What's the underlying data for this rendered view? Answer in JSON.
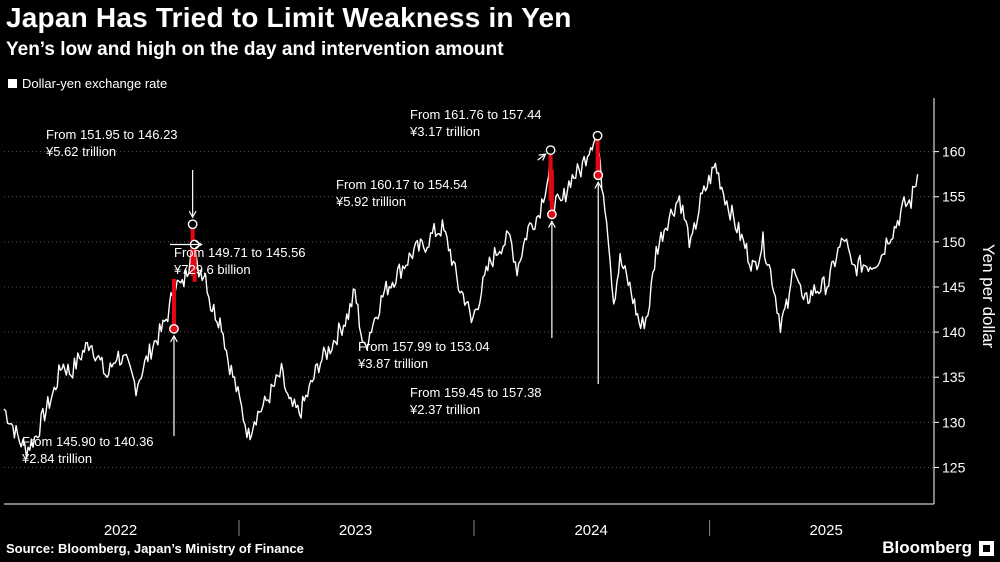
{
  "title": "Japan Has Tried to Limit Weakness in Yen",
  "subtitle": "Yen’s low and high on the day and intervention amount",
  "legend_label": "Dollar-yen exchange rate",
  "source": "Source: Bloomberg, Japan’s Ministry of Finance",
  "brand": "Bloomberg",
  "colors": {
    "background": "#000000",
    "line": "#ffffff",
    "intervention": "#e30613"
  },
  "chart_data": {
    "type": "line",
    "ylabel": "Yen per dollar",
    "ylim": [
      122.5,
      165.5
    ],
    "yticks": [
      125,
      130,
      135,
      140,
      145,
      150,
      155,
      160
    ],
    "xlim": [
      "2022-01-01",
      "2025-11-30"
    ],
    "xticks": [
      {
        "label": "2022",
        "date": "2022-07-01"
      },
      {
        "label": "2023",
        "date": "2023-07-01"
      },
      {
        "label": "2024",
        "date": "2024-07-01"
      },
      {
        "label": "2025",
        "date": "2025-07-01"
      }
    ],
    "year_boundaries": [
      "2023-01-01",
      "2024-01-01",
      "2025-01-01"
    ],
    "series": [
      {
        "values": [
          [
            "2022-01-01",
            131.5
          ],
          [
            "2022-01-12",
            130.0
          ],
          [
            "2022-01-25",
            128.0
          ],
          [
            "2022-02-05",
            127.0
          ],
          [
            "2022-02-20",
            128.5
          ],
          [
            "2022-03-05",
            131.0
          ],
          [
            "2022-03-20",
            133.5
          ],
          [
            "2022-04-01",
            136.5
          ],
          [
            "2022-04-15",
            135.5
          ],
          [
            "2022-05-01",
            137.5
          ],
          [
            "2022-05-15",
            139.0
          ],
          [
            "2022-05-28",
            137.0
          ],
          [
            "2022-06-10",
            135.0
          ],
          [
            "2022-06-25",
            137.5
          ],
          [
            "2022-07-10",
            136.5
          ],
          [
            "2022-07-25",
            134.0
          ],
          [
            "2022-08-05",
            136.0
          ],
          [
            "2022-08-20",
            138.5
          ],
          [
            "2022-09-05",
            140.5
          ],
          [
            "2022-09-15",
            142.5
          ],
          [
            "2022-09-22",
            145.5
          ],
          [
            "2022-10-05",
            145.0
          ],
          [
            "2022-10-15",
            147.5
          ],
          [
            "2022-10-21",
            151.5
          ],
          [
            "2022-10-28",
            147.0
          ],
          [
            "2022-11-10",
            146.5
          ],
          [
            "2022-11-18",
            143.0
          ],
          [
            "2022-12-05",
            141.0
          ],
          [
            "2022-12-15",
            137.0
          ],
          [
            "2022-12-25",
            134.5
          ],
          [
            "2023-01-05",
            131.5
          ],
          [
            "2023-01-16",
            128.5
          ],
          [
            "2023-01-25",
            130.5
          ],
          [
            "2023-02-10",
            132.0
          ],
          [
            "2023-02-25",
            134.0
          ],
          [
            "2023-03-08",
            135.5
          ],
          [
            "2023-03-20",
            132.0
          ],
          [
            "2023-04-05",
            131.0
          ],
          [
            "2023-04-20",
            133.5
          ],
          [
            "2023-05-05",
            136.5
          ],
          [
            "2023-05-20",
            138.0
          ],
          [
            "2023-06-05",
            140.0
          ],
          [
            "2023-06-20",
            142.0
          ],
          [
            "2023-06-30",
            144.5
          ],
          [
            "2023-07-14",
            138.0
          ],
          [
            "2023-07-28",
            141.0
          ],
          [
            "2023-08-15",
            144.5
          ],
          [
            "2023-08-30",
            146.0
          ],
          [
            "2023-09-15",
            147.5
          ],
          [
            "2023-09-30",
            149.0
          ],
          [
            "2023-10-15",
            149.5
          ],
          [
            "2023-10-31",
            151.0
          ],
          [
            "2023-11-13",
            151.5
          ],
          [
            "2023-11-25",
            149.0
          ],
          [
            "2023-12-08",
            145.0
          ],
          [
            "2023-12-20",
            143.5
          ],
          [
            "2023-12-28",
            141.0
          ],
          [
            "2024-01-10",
            144.0
          ],
          [
            "2024-01-25",
            147.5
          ],
          [
            "2024-02-10",
            149.5
          ],
          [
            "2024-02-26",
            150.5
          ],
          [
            "2024-03-08",
            147.0
          ],
          [
            "2024-03-25",
            151.5
          ],
          [
            "2024-04-10",
            153.0
          ],
          [
            "2024-04-26",
            157.5
          ],
          [
            "2024-04-29",
            159.5
          ],
          [
            "2024-05-02",
            154.5
          ],
          [
            "2024-05-15",
            154.0
          ],
          [
            "2024-05-30",
            157.0
          ],
          [
            "2024-06-15",
            158.0
          ],
          [
            "2024-06-28",
            160.5
          ],
          [
            "2024-07-05",
            161.5
          ],
          [
            "2024-07-11",
            161.7
          ],
          [
            "2024-07-15",
            158.0
          ],
          [
            "2024-07-25",
            153.0
          ],
          [
            "2024-08-05",
            143.5
          ],
          [
            "2024-08-15",
            148.0
          ],
          [
            "2024-08-30",
            145.0
          ],
          [
            "2024-09-16",
            140.5
          ],
          [
            "2024-09-27",
            142.0
          ],
          [
            "2024-10-10",
            149.0
          ],
          [
            "2024-10-25",
            152.0
          ],
          [
            "2024-11-15",
            155.0
          ],
          [
            "2024-12-03",
            149.5
          ],
          [
            "2024-12-18",
            154.5
          ],
          [
            "2025-01-10",
            158.5
          ],
          [
            "2025-01-25",
            155.0
          ],
          [
            "2025-02-10",
            152.0
          ],
          [
            "2025-02-25",
            149.5
          ],
          [
            "2025-03-11",
            147.0
          ],
          [
            "2025-03-25",
            150.0
          ],
          [
            "2025-04-08",
            146.0
          ],
          [
            "2025-04-21",
            141.0
          ],
          [
            "2025-05-05",
            143.5
          ],
          [
            "2025-05-12",
            148.0
          ],
          [
            "2025-05-27",
            143.0
          ],
          [
            "2025-06-10",
            144.5
          ],
          [
            "2025-06-25",
            145.0
          ],
          [
            "2025-07-05",
            145.5
          ],
          [
            "2025-07-17",
            148.5
          ],
          [
            "2025-07-30",
            150.5
          ],
          [
            "2025-08-10",
            147.0
          ],
          [
            "2025-08-25",
            147.5
          ],
          [
            "2025-09-10",
            147.5
          ],
          [
            "2025-09-25",
            148.5
          ],
          [
            "2025-10-05",
            150.5
          ],
          [
            "2025-10-15",
            151.5
          ],
          [
            "2025-10-30",
            154.0
          ],
          [
            "2025-11-10",
            154.5
          ],
          [
            "2025-11-20",
            157.5
          ]
        ]
      }
    ],
    "interventions": [
      {
        "date": "2022-09-22",
        "from": 145.9,
        "to": 140.36,
        "amount": "¥2.84 trillion",
        "line1": "From 145.90 to 140.36",
        "line2": "¥2.84 trillion",
        "marker": "low"
      },
      {
        "date": "2022-10-21",
        "from": 151.95,
        "to": 146.23,
        "amount": "¥5.62 trillion",
        "line1": "From 151.95 to 146.23",
        "line2": "¥5.62 trillion",
        "marker": "high"
      },
      {
        "date": "2022-10-24",
        "from": 149.71,
        "to": 145.56,
        "amount": "¥729.6 billion",
        "line1": "From 149.71 to 145.56",
        "line2": "¥729.6 billion",
        "marker": "high"
      },
      {
        "date": "2024-04-29",
        "from": 160.17,
        "to": 154.54,
        "amount": "¥5.92 trillion",
        "line1": "From 160.17 to 154.54",
        "line2": "¥5.92 trillion",
        "marker": "high"
      },
      {
        "date": "2024-05-01",
        "from": 157.99,
        "to": 153.04,
        "amount": "¥3.87 trillion",
        "line1": "From 157.99 to 153.04",
        "line2": "¥3.87 trillion",
        "marker": "low"
      },
      {
        "date": "2024-07-11",
        "from": 161.76,
        "to": 157.44,
        "amount": "¥3.17 trillion",
        "line1": "From 161.76 to 157.44",
        "line2": "¥3.17 trillion",
        "marker": "high"
      },
      {
        "date": "2024-07-12",
        "from": 159.45,
        "to": 157.38,
        "amount": "¥2.37 trillion",
        "line1": "From 159.45 to 157.38",
        "line2": "¥2.37 trillion",
        "marker": "low"
      }
    ]
  }
}
